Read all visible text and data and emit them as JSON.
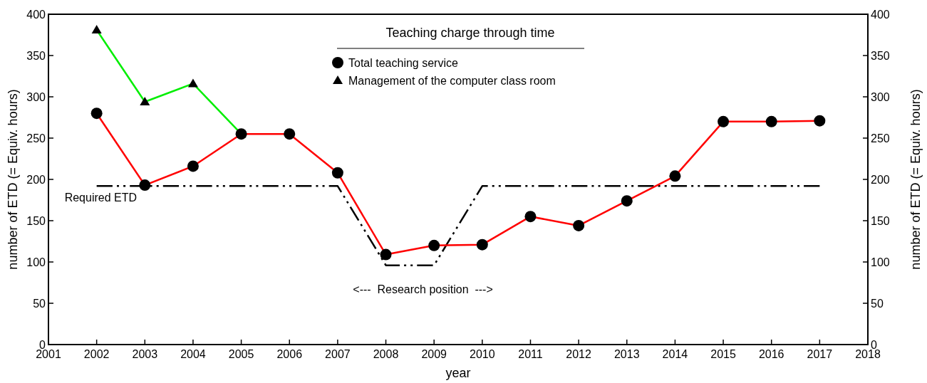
{
  "chart_data": {
    "type": "line",
    "xlabel": "year",
    "ylabel": "number of ETD (= Equiv. hours)",
    "y2label": "number of ETD (= Equiv. hours)",
    "legend_title": "Teaching charge through time",
    "x": [
      2002,
      2003,
      2004,
      2005,
      2006,
      2007,
      2008,
      2009,
      2010,
      2011,
      2012,
      2013,
      2014,
      2015,
      2016,
      2017
    ],
    "series": [
      {
        "name": "Required ETD",
        "color": "#000000",
        "marker": "none",
        "line_style": "dashed",
        "values": [
          192,
          192,
          192,
          192,
          192,
          192,
          96,
          96,
          192,
          192,
          192,
          192,
          192,
          192,
          192,
          192
        ]
      },
      {
        "name": "Management of the computer class room",
        "color": "#00ee00",
        "marker": "triangle",
        "x": [
          2002,
          2003,
          2004,
          2005
        ],
        "values": [
          381,
          294,
          316,
          255
        ]
      },
      {
        "name": "Total teaching service",
        "color": "#ff0000",
        "marker": "circle",
        "values": [
          280,
          193,
          216,
          255,
          255,
          208,
          109,
          120,
          121,
          155,
          144,
          174,
          204,
          270,
          270,
          271
        ]
      }
    ],
    "xlim": [
      2001,
      2018
    ],
    "xticks": [
      2001,
      2002,
      2003,
      2004,
      2005,
      2006,
      2007,
      2008,
      2009,
      2010,
      2011,
      2012,
      2013,
      2014,
      2015,
      2016,
      2017,
      2018
    ],
    "ylim": [
      0,
      400
    ],
    "yticks": [
      0,
      50,
      100,
      150,
      200,
      250,
      300,
      350,
      400
    ],
    "y2lim": [
      0,
      400
    ],
    "y2ticks": [
      0,
      50,
      100,
      150,
      200,
      250,
      300,
      350,
      400
    ],
    "annotations": [
      "<---  Research position  --->"
    ],
    "legend": "top",
    "grid": false
  }
}
